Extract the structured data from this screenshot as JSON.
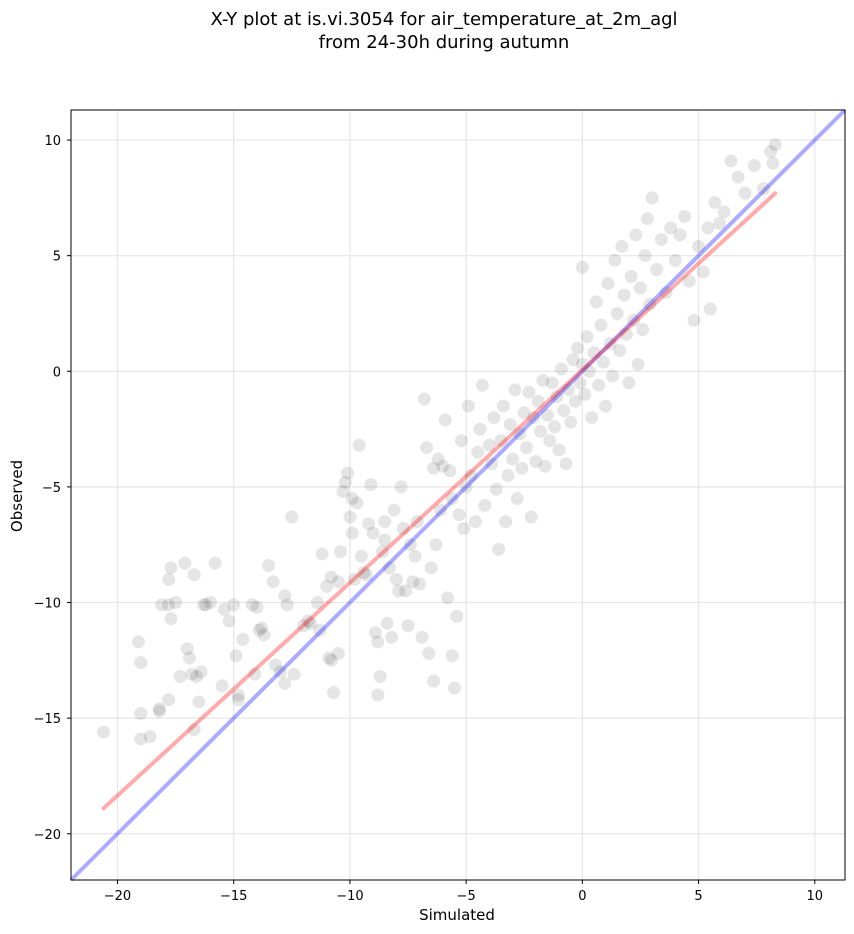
{
  "chart_data": {
    "type": "scatter",
    "title_line1": "X-Y plot at is.vi.3054 for air_temperature_at_2m_agl",
    "title_line2": "from 24-30h during autumn",
    "xlabel": "Simulated",
    "ylabel": "Observed",
    "xlim": [
      -22.0,
      11.3
    ],
    "ylim": [
      -22.0,
      11.3
    ],
    "xticks": [
      -20,
      -15,
      -10,
      -5,
      0,
      5,
      10
    ],
    "yticks": [
      -20,
      -15,
      -10,
      -5,
      0,
      5,
      10
    ],
    "xtick_labels": [
      "−20",
      "−15",
      "−10",
      "−5",
      "0",
      "5",
      "10"
    ],
    "ytick_labels": [
      "−20",
      "−15",
      "−10",
      "−5",
      "0",
      "5",
      "10"
    ],
    "grid": true,
    "colors": {
      "points": "#000000",
      "identity_line": "#0000ff",
      "fit_line": "#ff0000",
      "grid": "#e6e6e6"
    },
    "identity_line": {
      "x": [
        -22.0,
        11.3
      ],
      "y": [
        -22.0,
        11.3
      ]
    },
    "fit_line": {
      "x": [
        -20.6,
        8.3
      ],
      "y": [
        -18.9,
        7.7
      ]
    },
    "points": [
      [
        -20.6,
        -15.6
      ],
      [
        -19.1,
        -11.7
      ],
      [
        -19.0,
        -12.6
      ],
      [
        -19.0,
        -14.8
      ],
      [
        -19.0,
        -15.9
      ],
      [
        -18.6,
        -15.8
      ],
      [
        -18.2,
        -14.7
      ],
      [
        -18.2,
        -14.6
      ],
      [
        -18.1,
        -10.1
      ],
      [
        -17.8,
        -14.2
      ],
      [
        -17.8,
        -10.1
      ],
      [
        -17.8,
        -9.0
      ],
      [
        -17.7,
        -8.5
      ],
      [
        -17.7,
        -10.7
      ],
      [
        -17.5,
        -10.0
      ],
      [
        -17.3,
        -13.2
      ],
      [
        -17.1,
        -8.3
      ],
      [
        -17.0,
        -12.0
      ],
      [
        -16.9,
        -12.4
      ],
      [
        -16.8,
        -13.1
      ],
      [
        -16.7,
        -15.5
      ],
      [
        -16.7,
        -8.8
      ],
      [
        -16.6,
        -13.2
      ],
      [
        -16.5,
        -14.3
      ],
      [
        -16.4,
        -13.0
      ],
      [
        -16.3,
        -10.1
      ],
      [
        -16.2,
        -10.1
      ],
      [
        -16.0,
        -10.0
      ],
      [
        -15.8,
        -8.3
      ],
      [
        -15.5,
        -13.6
      ],
      [
        -15.4,
        -10.3
      ],
      [
        -15.2,
        -10.8
      ],
      [
        -15.0,
        -10.1
      ],
      [
        -14.9,
        -12.3
      ],
      [
        -14.8,
        -14.0
      ],
      [
        -14.8,
        -14.2
      ],
      [
        -14.6,
        -11.6
      ],
      [
        -14.2,
        -10.1
      ],
      [
        -14.1,
        -13.1
      ],
      [
        -14.0,
        -10.2
      ],
      [
        -13.9,
        -11.2
      ],
      [
        -13.8,
        -11.1
      ],
      [
        -13.7,
        -11.4
      ],
      [
        -13.5,
        -8.4
      ],
      [
        -13.3,
        -9.1
      ],
      [
        -13.2,
        -12.7
      ],
      [
        -13.0,
        -13.0
      ],
      [
        -12.8,
        -13.5
      ],
      [
        -12.8,
        -9.7
      ],
      [
        -12.7,
        -10.1
      ],
      [
        -12.5,
        -6.3
      ],
      [
        -12.4,
        -13.1
      ],
      [
        -12.0,
        -11.0
      ],
      [
        -11.8,
        -10.8
      ],
      [
        -11.7,
        -10.9
      ],
      [
        -11.4,
        -10.0
      ],
      [
        -11.3,
        -11.2
      ],
      [
        -11.2,
        -7.9
      ],
      [
        -11.0,
        -9.3
      ],
      [
        -10.9,
        -12.4
      ],
      [
        -10.8,
        -12.5
      ],
      [
        -10.8,
        -8.9
      ],
      [
        -10.7,
        -13.9
      ],
      [
        -10.5,
        -9.1
      ],
      [
        -10.5,
        -12.2
      ],
      [
        -10.4,
        -7.8
      ],
      [
        -10.3,
        -5.2
      ],
      [
        -10.2,
        -4.8
      ],
      [
        -10.1,
        -4.4
      ],
      [
        -10.0,
        -6.3
      ],
      [
        -9.9,
        -5.5
      ],
      [
        -9.9,
        -7.0
      ],
      [
        -9.8,
        -9.0
      ],
      [
        -9.7,
        -5.7
      ],
      [
        -9.6,
        -3.2
      ],
      [
        -9.5,
        -8.0
      ],
      [
        -9.4,
        -8.7
      ],
      [
        -9.3,
        -8.8
      ],
      [
        -9.2,
        -6.6
      ],
      [
        -9.1,
        -4.9
      ],
      [
        -9.0,
        -7.0
      ],
      [
        -8.9,
        -11.3
      ],
      [
        -8.8,
        -14.0
      ],
      [
        -8.8,
        -11.7
      ],
      [
        -8.7,
        -13.2
      ],
      [
        -8.6,
        -7.8
      ],
      [
        -8.5,
        -6.5
      ],
      [
        -8.5,
        -7.3
      ],
      [
        -8.4,
        -10.9
      ],
      [
        -8.3,
        -8.5
      ],
      [
        -8.2,
        -11.5
      ],
      [
        -8.1,
        -6.0
      ],
      [
        -8.0,
        -9.0
      ],
      [
        -7.9,
        -9.5
      ],
      [
        -7.8,
        -5.0
      ],
      [
        -7.7,
        -6.8
      ],
      [
        -7.6,
        -9.5
      ],
      [
        -7.5,
        -11.0
      ],
      [
        -7.4,
        -7.5
      ],
      [
        -7.3,
        -9.1
      ],
      [
        -7.2,
        -8.0
      ],
      [
        -7.1,
        -6.5
      ],
      [
        -7.0,
        -9.2
      ],
      [
        -6.9,
        -11.5
      ],
      [
        -6.8,
        -1.2
      ],
      [
        -6.7,
        -3.3
      ],
      [
        -6.6,
        -12.2
      ],
      [
        -6.5,
        -8.5
      ],
      [
        -6.4,
        -4.2
      ],
      [
        -6.4,
        -13.4
      ],
      [
        -6.3,
        -7.5
      ],
      [
        -6.2,
        -3.8
      ],
      [
        -6.1,
        -6.0
      ],
      [
        -6.0,
        -4.1
      ],
      [
        -5.9,
        -2.1
      ],
      [
        -5.8,
        -9.8
      ],
      [
        -5.7,
        -4.3
      ],
      [
        -5.6,
        -5.5
      ],
      [
        -5.6,
        -12.3
      ],
      [
        -5.5,
        -13.7
      ],
      [
        -5.4,
        -10.6
      ],
      [
        -5.3,
        -6.2
      ],
      [
        -5.2,
        -3.0
      ],
      [
        -5.1,
        -6.8
      ],
      [
        -5.0,
        -5.0
      ],
      [
        -4.9,
        -1.5
      ],
      [
        -4.8,
        -4.5
      ],
      [
        -4.6,
        -6.5
      ],
      [
        -4.5,
        -3.5
      ],
      [
        -4.4,
        -2.5
      ],
      [
        -4.3,
        -0.6
      ],
      [
        -4.2,
        -5.8
      ],
      [
        -4.0,
        -3.2
      ],
      [
        -3.9,
        -4.0
      ],
      [
        -3.8,
        -2.0
      ],
      [
        -3.7,
        -5.1
      ],
      [
        -3.6,
        -7.7
      ],
      [
        -3.5,
        -3.0
      ],
      [
        -3.4,
        -1.5
      ],
      [
        -3.3,
        -6.5
      ],
      [
        -3.2,
        -4.5
      ],
      [
        -3.1,
        -2.3
      ],
      [
        -3.0,
        -3.8
      ],
      [
        -2.9,
        -0.8
      ],
      [
        -2.8,
        -5.5
      ],
      [
        -2.7,
        -2.7
      ],
      [
        -2.6,
        -4.2
      ],
      [
        -2.5,
        -1.8
      ],
      [
        -2.4,
        -3.3
      ],
      [
        -2.3,
        -0.9
      ],
      [
        -2.2,
        -6.3
      ],
      [
        -2.1,
        -2.0
      ],
      [
        -2.0,
        -3.9
      ],
      [
        -1.9,
        -1.3
      ],
      [
        -1.8,
        -2.6
      ],
      [
        -1.7,
        -0.4
      ],
      [
        -1.6,
        -4.1
      ],
      [
        -1.5,
        -1.9
      ],
      [
        -1.4,
        -3.0
      ],
      [
        -1.3,
        -0.5
      ],
      [
        -1.2,
        -2.4
      ],
      [
        -1.1,
        -1.1
      ],
      [
        -1.0,
        -3.4
      ],
      [
        -0.9,
        0.1
      ],
      [
        -0.8,
        -1.7
      ],
      [
        -0.7,
        -4.0
      ],
      [
        -0.6,
        -0.8
      ],
      [
        -0.5,
        -2.2
      ],
      [
        -0.4,
        0.5
      ],
      [
        -0.3,
        -1.3
      ],
      [
        -0.2,
        1.0
      ],
      [
        -0.1,
        -0.5
      ],
      [
        0.0,
        0.3
      ],
      [
        0.0,
        4.5
      ],
      [
        0.1,
        -1.0
      ],
      [
        0.2,
        1.5
      ],
      [
        0.3,
        0.0
      ],
      [
        0.4,
        -2.0
      ],
      [
        0.5,
        0.8
      ],
      [
        0.6,
        3.0
      ],
      [
        0.7,
        -0.6
      ],
      [
        0.8,
        2.0
      ],
      [
        0.9,
        0.4
      ],
      [
        1.0,
        -1.5
      ],
      [
        1.1,
        3.8
      ],
      [
        1.2,
        1.2
      ],
      [
        1.3,
        -0.2
      ],
      [
        1.4,
        4.8
      ],
      [
        1.5,
        2.5
      ],
      [
        1.6,
        0.9
      ],
      [
        1.7,
        5.4
      ],
      [
        1.8,
        3.3
      ],
      [
        1.9,
        1.6
      ],
      [
        2.0,
        -0.5
      ],
      [
        2.1,
        4.1
      ],
      [
        2.2,
        2.2
      ],
      [
        2.3,
        5.9
      ],
      [
        2.4,
        0.3
      ],
      [
        2.5,
        3.6
      ],
      [
        2.6,
        1.8
      ],
      [
        2.7,
        5.0
      ],
      [
        2.8,
        6.6
      ],
      [
        2.9,
        2.9
      ],
      [
        3.0,
        7.5
      ],
      [
        3.2,
        4.4
      ],
      [
        3.4,
        5.7
      ],
      [
        3.6,
        3.4
      ],
      [
        3.8,
        6.2
      ],
      [
        4.0,
        4.8
      ],
      [
        4.2,
        5.9
      ],
      [
        4.4,
        6.7
      ],
      [
        4.6,
        3.9
      ],
      [
        4.8,
        2.2
      ],
      [
        5.0,
        5.4
      ],
      [
        5.2,
        4.3
      ],
      [
        5.4,
        6.2
      ],
      [
        5.5,
        2.7
      ],
      [
        5.7,
        7.3
      ],
      [
        5.9,
        6.4
      ],
      [
        6.1,
        6.9
      ],
      [
        6.4,
        9.1
      ],
      [
        6.7,
        8.4
      ],
      [
        7.0,
        7.7
      ],
      [
        7.4,
        8.9
      ],
      [
        7.8,
        7.9
      ],
      [
        8.1,
        9.5
      ],
      [
        8.2,
        9.0
      ],
      [
        8.3,
        9.8
      ]
    ]
  }
}
